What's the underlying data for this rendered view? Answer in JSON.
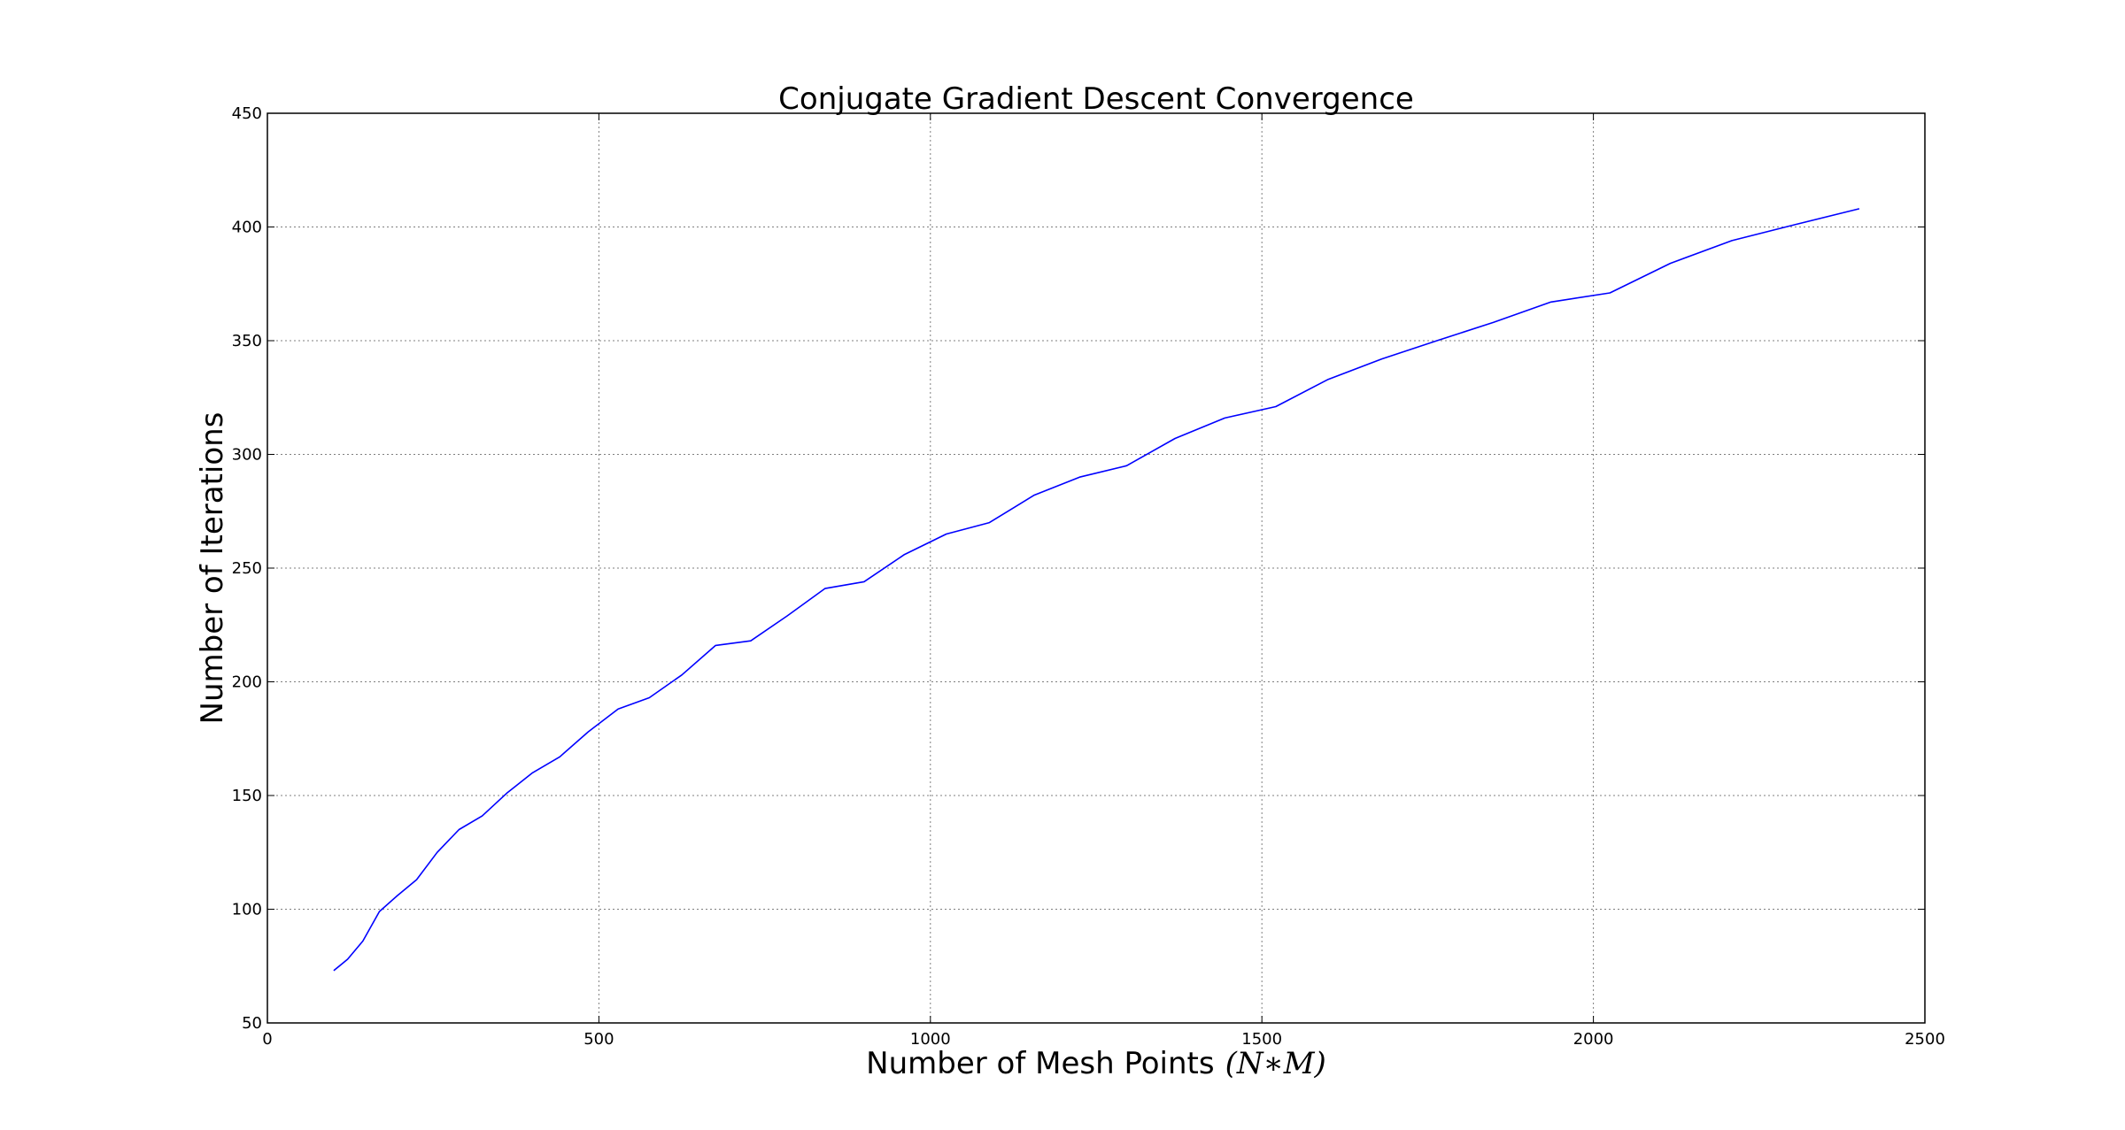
{
  "chart_data": {
    "type": "line",
    "title": "Conjugate Gradient Descent Convergence",
    "xlabel": "Number of Mesh Points",
    "xlabel_math": "(N∗M)",
    "ylabel": "Number of Iterations",
    "xlim": [
      0,
      2500
    ],
    "ylim": [
      50,
      450
    ],
    "xticks": [
      0,
      500,
      1000,
      1500,
      2000,
      2500
    ],
    "yticks": [
      50,
      100,
      150,
      200,
      250,
      300,
      350,
      400,
      450
    ],
    "grid": true,
    "series": [
      {
        "color": "#0000ff",
        "x": [
          100,
          121,
          144,
          169,
          196,
          225,
          256,
          289,
          324,
          361,
          400,
          441,
          484,
          529,
          576,
          625,
          676,
          729,
          784,
          841,
          900,
          961,
          1024,
          1089,
          1156,
          1225,
          1296,
          1369,
          1444,
          1521,
          1600,
          1681,
          1764,
          1849,
          1936,
          2025,
          2116,
          2209,
          2304,
          2401
        ],
        "y": [
          73,
          78,
          86,
          99,
          106,
          113,
          125,
          135,
          141,
          151,
          160,
          167,
          178,
          188,
          193,
          203,
          216,
          218,
          229,
          241,
          244,
          256,
          265,
          270,
          282,
          290,
          295,
          307,
          316,
          321,
          333,
          342,
          350,
          358,
          367,
          371,
          384,
          394,
          401,
          408
        ]
      }
    ]
  }
}
